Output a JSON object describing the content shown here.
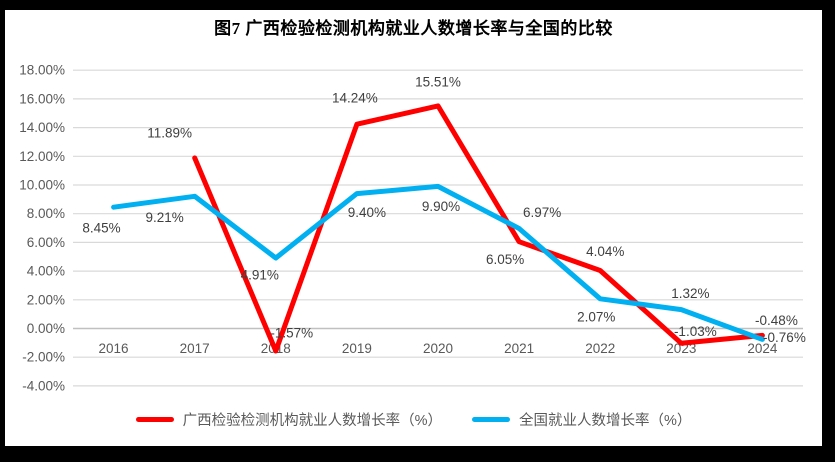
{
  "chart_data": {
    "type": "line",
    "title": "图7 广西检验检测机构就业人数增长率与全国的比较",
    "categories": [
      "2016",
      "2017",
      "2018",
      "2019",
      "2020",
      "2021",
      "2022",
      "2023",
      "2024"
    ],
    "series": [
      {
        "name": "广西检验检测机构就业人数增长率（%）",
        "color": "#FF0000",
        "values": [
          null,
          11.89,
          -1.57,
          14.24,
          15.51,
          6.05,
          4.04,
          -1.03,
          -0.48
        ],
        "label_offsets": [
          null,
          [
            -25,
            -25
          ],
          [
            16,
            -18
          ],
          [
            -2,
            -26
          ],
          [
            0,
            -24
          ],
          [
            -14,
            18
          ],
          [
            5,
            -19
          ],
          [
            14,
            -12
          ],
          [
            14,
            -15
          ]
        ]
      },
      {
        "name": "全国就业人数增长率（%）",
        "color": "#00B0F0",
        "values": [
          8.45,
          9.21,
          4.91,
          9.4,
          9.9,
          6.97,
          2.07,
          1.32,
          -0.76
        ],
        "label_offsets": [
          [
            -12,
            21
          ],
          [
            -30,
            21
          ],
          [
            -16,
            17
          ],
          [
            10,
            19
          ],
          [
            3,
            20
          ],
          [
            23,
            -16
          ],
          [
            -4,
            18
          ],
          [
            9,
            -16
          ],
          [
            22,
            -2
          ]
        ]
      }
    ],
    "ylim": [
      -4,
      18
    ],
    "y_tick_step": 2,
    "y_tick_labels": [
      "18.00%",
      "16.00%",
      "14.00%",
      "12.00%",
      "10.00%",
      "8.00%",
      "6.00%",
      "4.00%",
      "2.00%",
      "0.00%",
      "-2.00%",
      "-4.00%"
    ],
    "y_tick_values": [
      18,
      16,
      14,
      12,
      10,
      8,
      6,
      4,
      2,
      0,
      -2,
      -4
    ],
    "grid": true,
    "legend_position": "bottom",
    "colors": {
      "gridline": "#D9D9D9",
      "axis_line": "#C0C0C0",
      "tick_label": "#595959",
      "data_label": "#404040",
      "title": "#000000",
      "background": "#FFFFFF",
      "frame": "#000000"
    }
  }
}
